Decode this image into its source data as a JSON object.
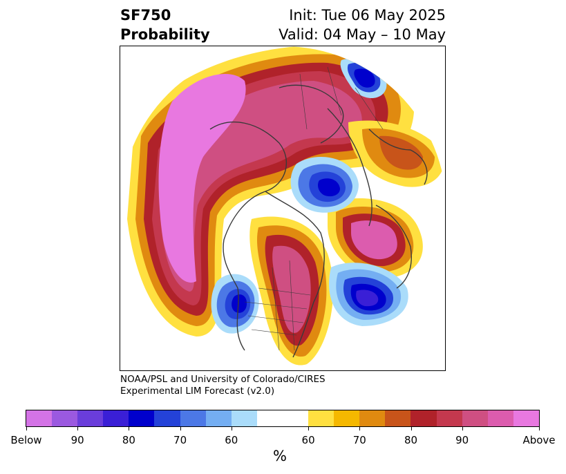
{
  "header": {
    "variable": "SF750",
    "product": "Probability",
    "init": "Init: Tue 06 May 2025",
    "valid": "Valid: 04 May – 10 May"
  },
  "credit": {
    "line1": "NOAA/PSL and University of Colorado/CIRES",
    "line2": "Experimental LIM Forecast (v2.0)"
  },
  "colorbar": {
    "label": "%",
    "colors": [
      "#d473e6",
      "#9b59e0",
      "#6a3ddb",
      "#3a1fd6",
      "#0000cc",
      "#2442d8",
      "#4c78e6",
      "#74aef2",
      "#aadcfa",
      "#ffffff",
      "#ffe040",
      "#f5b800",
      "#e08a10",
      "#c8541a",
      "#b0222a",
      "#c4384e",
      "#cf4f82",
      "#dc5cae",
      "#e878e0"
    ],
    "tick_labels": [
      "Below",
      "90",
      "80",
      "70",
      "60",
      "60",
      "70",
      "80",
      "90",
      "Above"
    ],
    "white_band_span": 2
  }
}
